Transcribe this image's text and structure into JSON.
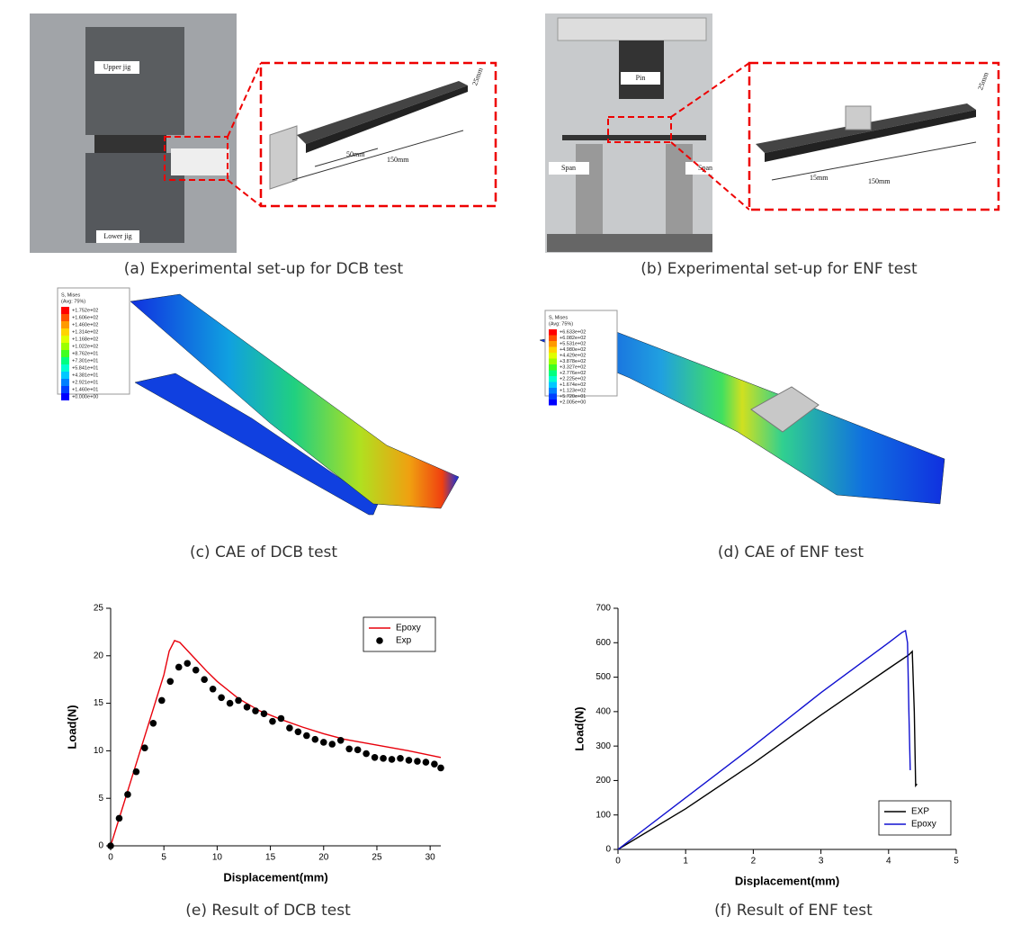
{
  "captions": [
    "(a) Experimental set-up for DCB test",
    "(b) Experimental set-up for ENF test",
    "(c) CAE of DCB test",
    "(d) CAE of ENF test",
    "(e) Result of DCB test",
    "(f) Result of ENF test"
  ],
  "dcb_photo": {
    "labels": [
      "Upper jig",
      "Lower jig"
    ],
    "dims": [
      "50mm",
      "150mm",
      "25mm"
    ]
  },
  "enf_photo": {
    "labels": [
      "Pin",
      "Span",
      "Span"
    ],
    "dims": [
      "15mm",
      "150mm",
      "25mm"
    ]
  },
  "cae_dcb": {
    "legend_title": "S, Mises",
    "legend_subtitle": "(Avg: 75%)",
    "levels": [
      "+1.752e+02",
      "+1.606e+02",
      "+1.460e+02",
      "+1.314e+02",
      "+1.168e+02",
      "+1.022e+02",
      "+8.762e+01",
      "+7.301e+01",
      "+5.841e+01",
      "+4.381e+01",
      "+2.921e+01",
      "+1.460e+01",
      "+0.000e+00"
    ]
  },
  "cae_enf": {
    "legend_title": "S, Mises",
    "legend_subtitle": "(Avg: 75%)",
    "levels": [
      "+6.633e+02",
      "+6.082e+02",
      "+5.531e+02",
      "+4.980e+02",
      "+4.429e+02",
      "+3.878e+02",
      "+3.327e+02",
      "+2.776e+02",
      "+2.225e+02",
      "+1.674e+02",
      "+1.123e+02",
      "+5.720e+01",
      "+2.005e+00"
    ]
  },
  "chart_data": [
    {
      "type": "line",
      "xlabel": "Displacement(mm)",
      "ylabel": "Load(N)",
      "xlim": [
        0,
        31
      ],
      "xticks": [
        0,
        5,
        10,
        15,
        20,
        25,
        30
      ],
      "ylim": [
        0,
        25
      ],
      "yticks": [
        0,
        5,
        10,
        15,
        20,
        25
      ],
      "legend": "upper right",
      "series": [
        {
          "name": "Epoxy",
          "color": "#e8000b",
          "mode": "line",
          "x": [
            0,
            1,
            2,
            3,
            4,
            5,
            5.5,
            6,
            6.5,
            7,
            8,
            9,
            10,
            12,
            14,
            16,
            18,
            20,
            22,
            24,
            26,
            28,
            31
          ],
          "values": [
            0,
            3.6,
            7.2,
            10.8,
            14.4,
            18,
            20.5,
            21.6,
            21.4,
            20.8,
            19.6,
            18.4,
            17.3,
            15.5,
            14.2,
            13.3,
            12.5,
            11.8,
            11.2,
            10.8,
            10.4,
            10,
            9.3
          ]
        },
        {
          "name": "Exp",
          "color": "#000000",
          "mode": "markers",
          "x": [
            0,
            0.8,
            1.6,
            2.4,
            3.2,
            4,
            4.8,
            5.6,
            6.4,
            7.2,
            8,
            8.8,
            9.6,
            10.4,
            11.2,
            12,
            12.8,
            13.6,
            14.4,
            15.2,
            16,
            16.8,
            17.6,
            18.4,
            19.2,
            20,
            20.8,
            21.6,
            22.4,
            23.2,
            24,
            24.8,
            25.6,
            26.4,
            27.2,
            28,
            28.8,
            29.6,
            30.4,
            31
          ],
          "values": [
            0,
            2.9,
            5.4,
            7.8,
            10.3,
            12.9,
            15.3,
            17.3,
            18.8,
            19.2,
            18.5,
            17.5,
            16.5,
            15.6,
            15,
            15.3,
            14.6,
            14.2,
            13.9,
            13.1,
            13.4,
            12.4,
            12,
            11.6,
            11.2,
            10.9,
            10.7,
            11.1,
            10.2,
            10.1,
            9.7,
            9.3,
            9.2,
            9.1,
            9.2,
            9,
            8.9,
            8.8,
            8.6,
            8.2
          ]
        }
      ]
    },
    {
      "type": "line",
      "xlabel": "Displacement(mm)",
      "ylabel": "Load(N)",
      "xlim": [
        0,
        5
      ],
      "xticks": [
        0,
        1,
        2,
        3,
        4,
        5
      ],
      "ylim": [
        0,
        700
      ],
      "yticks": [
        0,
        100,
        200,
        300,
        400,
        500,
        600,
        700
      ],
      "legend": "lower right",
      "series": [
        {
          "name": "EXP",
          "color": "#000000",
          "mode": "line",
          "x": [
            0,
            1,
            2,
            3,
            4,
            4.3,
            4.35,
            4.38,
            4.4,
            4.42
          ],
          "values": [
            0,
            118,
            250,
            390,
            525,
            565,
            575,
            400,
            185,
            190
          ]
        },
        {
          "name": "Epoxy",
          "color": "#1010d0",
          "mode": "line",
          "x": [
            0,
            1,
            2,
            3,
            4,
            4.2,
            4.25,
            4.28,
            4.3,
            4.32
          ],
          "values": [
            0,
            150,
            300,
            455,
            600,
            630,
            635,
            600,
            400,
            230
          ]
        }
      ]
    }
  ]
}
